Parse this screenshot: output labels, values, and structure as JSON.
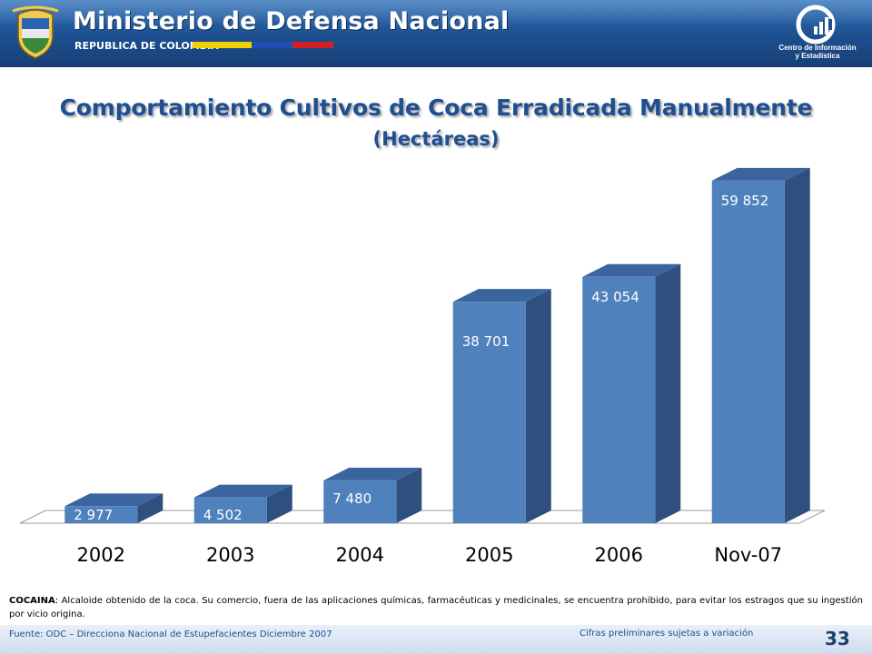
{
  "header": {
    "ministry_name": "Ministerio de Defensa Nacional",
    "country": "REPUBLICA DE COLOMBIA",
    "center_name_line1": "Centro de Información",
    "center_name_line2": "y Estadística",
    "flag_colors": [
      "#f3d100",
      "#1f4fb4",
      "#d21f26"
    ],
    "logo_icon": "coat-of-arms-icon",
    "center_icon": "bar-chart-logo-icon"
  },
  "title": "Comportamiento Cultivos de Coca Erradicada Manualmente",
  "subtitle": "(Hectáreas)",
  "chart_data": {
    "type": "bar",
    "style": "3d-column",
    "categories": [
      "2002",
      "2003",
      "2004",
      "2005",
      "2006",
      "Nov-07"
    ],
    "values": [
      2977,
      4502,
      7480,
      38701,
      43054,
      59852
    ],
    "value_labels": [
      "2 977",
      "4 502",
      "7 480",
      "38 701",
      "43 054",
      "59 852"
    ],
    "ylim": [
      0,
      60000
    ],
    "grid": false,
    "colors": {
      "front": "#4f81bd",
      "side": "#2f4f7e",
      "top": "#3a659e"
    }
  },
  "note": {
    "term": "COCAINA",
    "text": ":  Alcaloide obtenido de la coca. Su comercio, fuera de las aplicaciones químicas, farmacéuticas y medicinales, se encuentra prohibido, para evitar los estragos que su ingestión por vicio origina."
  },
  "footer": {
    "source": "Fuente: ODC – Direcciona Nacional de Estupefacientes  Diciembre 2007",
    "disclaimer": "Cifras preliminares sujetas a variación",
    "page_number": "33"
  }
}
